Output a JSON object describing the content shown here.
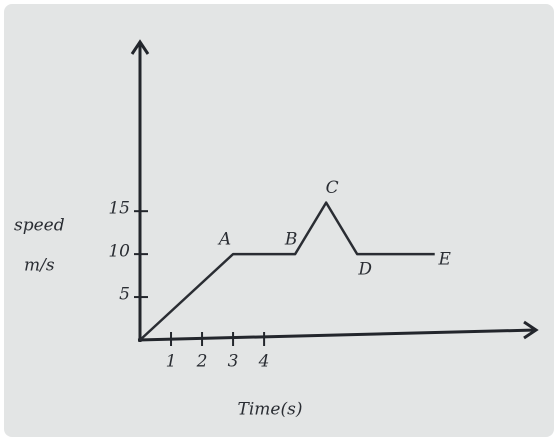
{
  "chart_data": {
    "type": "line",
    "ylabel_lines": [
      "speed",
      "m/s"
    ],
    "xlabel": "Time(s)",
    "x": [
      0,
      3,
      5,
      6,
      7,
      9.5
    ],
    "series": [
      {
        "values": [
          0,
          10,
          10,
          16,
          10,
          10
        ],
        "color": "#2a2d33"
      }
    ],
    "point_labels": [
      null,
      "A",
      "B",
      "C",
      "D",
      "E"
    ],
    "xlim": [
      0,
      12.7
    ],
    "ylim": [
      0,
      34
    ],
    "xticks": [
      1,
      2,
      3,
      4
    ],
    "yticks": [
      5,
      10,
      15
    ]
  }
}
